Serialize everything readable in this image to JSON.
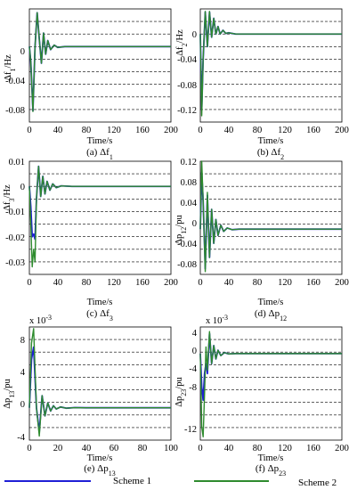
{
  "charts": [
    {
      "ylabel_main": "Δf",
      "ylabel_sub": "1",
      "ylabel_unit": "/Hz",
      "xlabel": "Time/s",
      "caption_prefix": "(a)  Δf",
      "caption_sub": "1",
      "ytick_labels": [
        "0",
        "-0.04",
        "-0.08"
      ],
      "xtick_labels": [
        "0",
        "40",
        "80",
        "120",
        "160",
        "200"
      ],
      "exponent_base": "",
      "exponent_power": ""
    },
    {
      "ylabel_main": "Δf",
      "ylabel_sub": "2",
      "ylabel_unit": "/Hz",
      "xlabel": "Time/s",
      "caption_prefix": "(b)  Δf",
      "caption_sub": "2",
      "ytick_labels": [
        "0",
        "-0.04",
        "-0.08",
        "-0.12"
      ],
      "xtick_labels": [
        "0",
        "40",
        "80",
        "120",
        "160",
        "200"
      ],
      "exponent_base": "",
      "exponent_power": ""
    },
    {
      "ylabel_main": "Δf",
      "ylabel_sub": "3",
      "ylabel_unit": "/Hz",
      "xlabel": "Time/s",
      "caption_prefix": "(c)  Δf",
      "caption_sub": "3",
      "ytick_labels": [
        "0.01",
        "0",
        "-0.01",
        "-0.02",
        "-0.03"
      ],
      "xtick_labels": [
        "0",
        "40",
        "80",
        "120",
        "160",
        "200"
      ],
      "exponent_base": "",
      "exponent_power": ""
    },
    {
      "ylabel_main": "Δp",
      "ylabel_sub": "12",
      "ylabel_unit": "/pu",
      "xlabel": "Time/s",
      "caption_prefix": "(d)  Δp",
      "caption_sub": "12",
      "ytick_labels": [
        "0.12",
        "0.08",
        "0.04",
        "0",
        "-0.04",
        "-0.08"
      ],
      "xtick_labels": [
        "0",
        "40",
        "80",
        "120",
        "160",
        "200"
      ],
      "exponent_base": "",
      "exponent_power": ""
    },
    {
      "ylabel_main": "Δp",
      "ylabel_sub": "13",
      "ylabel_unit": "/pu",
      "xlabel": "Time/s",
      "caption_prefix": "(e)  Δp",
      "caption_sub": "13",
      "ytick_labels": [
        "8",
        "4",
        "0",
        "-4"
      ],
      "xtick_labels": [
        "0",
        "20",
        "40",
        "60",
        "80",
        "100"
      ],
      "exponent_base": "x 10",
      "exponent_power": "-3"
    },
    {
      "ylabel_main": "Δp",
      "ylabel_sub": "23",
      "ylabel_unit": "/pu",
      "xlabel": "Time/s",
      "caption_prefix": "(f)  Δp",
      "caption_sub": "23",
      "ytick_labels": [
        "4",
        "0",
        "-4",
        "-8",
        "-12"
      ],
      "xtick_labels": [
        "0",
        "40",
        "80",
        "120",
        "160",
        "200"
      ],
      "exponent_base": "x 10",
      "exponent_power": "-3"
    }
  ],
  "legend": [
    {
      "name": "Scheme 1",
      "color": "#1f1fd6"
    },
    {
      "name": "Scheme 2",
      "color": "#2e8b2e"
    }
  ],
  "chart_data": [
    {
      "type": "line",
      "title": "(a) Δf1",
      "xlabel": "Time/s",
      "ylabel": "Δf1/Hz",
      "xlim": [
        0,
        200
      ],
      "ylim": [
        -0.1,
        0.05
      ],
      "grid": "horizontal dashed",
      "series": [
        {
          "name": "Scheme 1",
          "color": "#1f1fd6",
          "x": [
            0,
            2,
            5,
            8,
            11,
            14,
            17,
            20,
            23,
            26,
            30,
            35,
            40,
            50,
            200
          ],
          "y": [
            0,
            -0.02,
            -0.085,
            0.0,
            0.045,
            0.01,
            -0.022,
            0.018,
            -0.01,
            0.008,
            -0.004,
            0.002,
            -0.001,
            0,
            0
          ]
        },
        {
          "name": "Scheme 2",
          "color": "#2e8b2e",
          "x": [
            0,
            2,
            5,
            8,
            11,
            14,
            17,
            20,
            23,
            26,
            30,
            35,
            40,
            50,
            200
          ],
          "y": [
            0,
            -0.02,
            -0.086,
            0.0,
            0.045,
            0.01,
            -0.022,
            0.018,
            -0.01,
            0.008,
            -0.004,
            0.002,
            -0.001,
            0,
            0
          ]
        }
      ]
    },
    {
      "type": "line",
      "title": "(b) Δf2",
      "xlabel": "Time/s",
      "ylabel": "Δf2/Hz",
      "xlim": [
        0,
        200
      ],
      "ylim": [
        -0.14,
        0.04
      ],
      "grid": "horizontal dashed",
      "series": [
        {
          "name": "Scheme 1",
          "color": "#1f1fd6",
          "x": [
            0,
            2,
            4,
            7,
            10,
            13,
            16,
            19,
            22,
            25,
            28,
            32,
            36,
            40,
            50,
            200
          ],
          "y": [
            0,
            -0.12,
            -0.04,
            0.035,
            -0.02,
            0.035,
            -0.005,
            0.025,
            0.0,
            0.012,
            0.0,
            0.006,
            0.001,
            0.002,
            0,
            0
          ]
        },
        {
          "name": "Scheme 2",
          "color": "#2e8b2e",
          "x": [
            0,
            2,
            4,
            7,
            10,
            13,
            16,
            19,
            22,
            25,
            28,
            32,
            36,
            40,
            50,
            200
          ],
          "y": [
            0,
            -0.13,
            -0.04,
            0.036,
            -0.02,
            0.036,
            -0.005,
            0.025,
            0.0,
            0.012,
            0.0,
            0.006,
            0.001,
            0.002,
            0,
            0
          ]
        }
      ]
    },
    {
      "type": "line",
      "title": "(c) Δf3",
      "xlabel": "Time/s",
      "ylabel": "Δf3/Hz",
      "xlim": [
        0,
        200
      ],
      "ylim": [
        -0.035,
        0.01
      ],
      "grid": "horizontal dashed",
      "series": [
        {
          "name": "Scheme 1",
          "color": "#1f1fd6",
          "x": [
            0,
            2,
            4,
            6,
            8,
            10,
            13,
            16,
            19,
            22,
            25,
            29,
            33,
            38,
            45,
            60,
            200
          ],
          "y": [
            0,
            -0.008,
            -0.02,
            -0.019,
            -0.021,
            -0.005,
            0.008,
            -0.004,
            0.004,
            -0.003,
            0.002,
            -0.0015,
            0.001,
            -0.0005,
            0.0002,
            0,
            0
          ]
        },
        {
          "name": "Scheme 2",
          "color": "#2e8b2e",
          "x": [
            0,
            2,
            4,
            6,
            8,
            10,
            13,
            16,
            19,
            22,
            25,
            29,
            33,
            38,
            45,
            60,
            200
          ],
          "y": [
            0,
            -0.015,
            -0.032,
            -0.025,
            -0.03,
            -0.005,
            0.008,
            -0.004,
            0.004,
            -0.003,
            0.002,
            -0.0015,
            0.001,
            -0.0005,
            0.0002,
            0,
            0
          ]
        }
      ]
    },
    {
      "type": "line",
      "title": "(d) Δp12",
      "xlabel": "Time/s",
      "ylabel": "Δp12/pu",
      "xlim": [
        0,
        200
      ],
      "ylim": [
        -0.08,
        0.12
      ],
      "grid": "horizontal dashed",
      "series": [
        {
          "name": "Scheme 1",
          "color": "#1f1fd6",
          "x": [
            0,
            2,
            4,
            7,
            10,
            13,
            16,
            19,
            22,
            25,
            29,
            33,
            38,
            45,
            55,
            200
          ],
          "y": [
            0,
            0.1,
            0.05,
            -0.07,
            0.06,
            -0.05,
            0.035,
            -0.025,
            0.017,
            -0.011,
            0.007,
            -0.004,
            0.002,
            -0.001,
            0,
            0
          ]
        },
        {
          "name": "Scheme 2",
          "color": "#2e8b2e",
          "x": [
            0,
            2,
            4,
            7,
            10,
            13,
            16,
            19,
            22,
            25,
            29,
            33,
            38,
            45,
            55,
            200
          ],
          "y": [
            0,
            0.12,
            0.05,
            -0.075,
            0.065,
            -0.05,
            0.035,
            -0.025,
            0.017,
            -0.011,
            0.007,
            -0.004,
            0.002,
            -0.001,
            0,
            0
          ]
        }
      ]
    },
    {
      "type": "line",
      "title": "(e) Δp13",
      "xlabel": "Time/s",
      "ylabel": "Δp13/pu",
      "xlim": [
        0,
        100
      ],
      "ylim": [
        -4,
        10
      ],
      "grid": "horizontal dashed",
      "series": [
        {
          "name": "Scheme 1",
          "color": "#1f1fd6",
          "x": [
            0,
            1.5,
            3,
            5,
            7,
            9,
            11,
            13,
            15,
            17,
            19,
            22,
            26,
            32,
            40,
            100
          ],
          "y": [
            0,
            6,
            7.5,
            0,
            -3,
            1.5,
            -1.0,
            0.6,
            -0.4,
            0.25,
            -0.15,
            0.1,
            -0.05,
            0.02,
            0,
            0
          ]
        },
        {
          "name": "Scheme 2",
          "color": "#2e8b2e",
          "x": [
            0,
            1.5,
            3,
            5,
            7,
            9,
            11,
            13,
            15,
            17,
            19,
            22,
            26,
            32,
            40,
            100
          ],
          "y": [
            0,
            8,
            9.8,
            0,
            -3.5,
            1.5,
            -1.0,
            0.6,
            -0.4,
            0.25,
            -0.15,
            0.1,
            -0.05,
            0.02,
            0,
            0
          ]
        }
      ]
    },
    {
      "type": "line",
      "title": "(f) Δp23",
      "xlabel": "Time/s",
      "ylabel": "Δp23/pu",
      "xlim": [
        0,
        200
      ],
      "ylim": [
        -13,
        4
      ],
      "grid": "horizontal dashed",
      "series": [
        {
          "name": "Scheme 1",
          "color": "#1f1fd6",
          "x": [
            0,
            2,
            4,
            6,
            8,
            10,
            13,
            16,
            19,
            22,
            25,
            29,
            34,
            40,
            50,
            200
          ],
          "y": [
            0,
            -5,
            -7,
            -3,
            -1.5,
            -3,
            3.0,
            -1.5,
            1.2,
            -0.8,
            0.5,
            -0.3,
            0.15,
            -0.05,
            0,
            0
          ]
        },
        {
          "name": "Scheme 2",
          "color": "#2e8b2e",
          "x": [
            0,
            2,
            4,
            6,
            8,
            10,
            13,
            16,
            19,
            22,
            25,
            29,
            34,
            40,
            50,
            200
          ],
          "y": [
            0,
            -11,
            -12.5,
            -6,
            1.0,
            -2.5,
            3.3,
            -1.5,
            1.2,
            -0.8,
            0.5,
            -0.3,
            0.15,
            -0.05,
            0,
            0
          ]
        }
      ]
    }
  ]
}
